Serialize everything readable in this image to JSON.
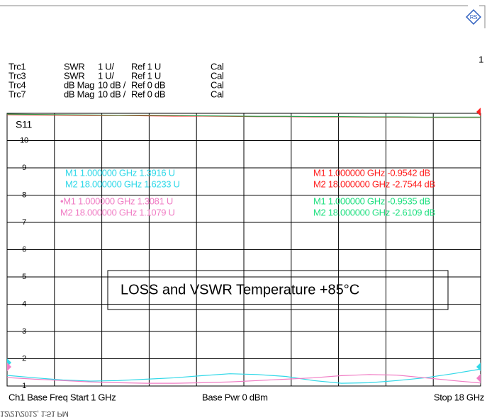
{
  "chart_data": {
    "type": "line",
    "channel": "1",
    "trace_label": "S11",
    "header_rows": [
      [
        "SWR",
        "1 U/",
        "Ref 1 U",
        "Cal"
      ],
      [
        "SWR",
        "1 U/",
        "Ref 1 U",
        "Cal"
      ],
      [
        "dB Mag",
        "10 dB /",
        "Ref 0 dB",
        "Cal"
      ],
      [
        "dB Mag",
        "10 dB /",
        "Ref 0 dB",
        "Cal"
      ]
    ],
    "x": [
      1,
      2,
      3,
      4,
      5,
      6,
      7,
      8,
      9,
      10,
      11,
      12,
      13,
      14,
      15,
      16,
      17,
      18
    ],
    "xlim": [
      1,
      18
    ],
    "ylim": [
      1,
      11
    ],
    "yticks": [
      1,
      2,
      3,
      4,
      5,
      6,
      7,
      8,
      9,
      10
    ],
    "grid": true,
    "series": [
      {
        "name": "Trc1",
        "color": "#30d8e8",
        "values": [
          1.39,
          1.3,
          1.22,
          1.18,
          1.2,
          1.25,
          1.3,
          1.38,
          1.45,
          1.42,
          1.35,
          1.2,
          1.1,
          1.12,
          1.2,
          1.3,
          1.45,
          1.62
        ]
      },
      {
        "name": "Trc3",
        "color": "#f07cc4",
        "values": [
          1.31,
          1.25,
          1.2,
          1.15,
          1.12,
          1.1,
          1.1,
          1.12,
          1.15,
          1.2,
          1.25,
          1.3,
          1.38,
          1.42,
          1.4,
          1.3,
          1.2,
          1.11
        ]
      },
      {
        "name": "Trc4",
        "color": "#ff2020",
        "values": [
          10.95,
          10.94,
          10.93,
          10.92,
          10.92,
          10.91,
          10.9,
          10.9,
          10.89,
          10.88,
          10.88,
          10.87,
          10.87,
          10.86,
          10.86,
          10.85,
          10.85,
          10.85
        ]
      },
      {
        "name": "Trc7",
        "color": "#30a050",
        "values": [
          10.97,
          10.96,
          10.95,
          10.94,
          10.93,
          10.93,
          10.92,
          10.91,
          10.9,
          10.89,
          10.89,
          10.88,
          10.88,
          10.87,
          10.87,
          10.86,
          10.86,
          10.86
        ]
      }
    ],
    "markers": [
      {
        "color": "#30d8e8",
        "lines": [
          "M1 1.000000 GHz 1.3916 U",
          "M2 18.000000 GHz 1.6233 U"
        ]
      },
      {
        "color": "#f07cc4",
        "lines": [
          "•M1 1.000000 GHz 1.3081 U",
          "M2 18.000000 GHz 1.1079 U"
        ]
      },
      {
        "color": "#ff2020",
        "lines": [
          "M1 1.000000 GHz -0.9542 dB",
          "M2 18.000000 GHz -2.7544 dB"
        ]
      },
      {
        "color": "#20e080",
        "lines": [
          "M1 1.000000 GHz -0.9535 dB",
          "M2 18.000000 GHz -2.6109 dB"
        ]
      }
    ],
    "annotation": "LOSS and VSWR Temperature +85°C",
    "footer": {
      "start": "Ch1 Base Freq Start 1 GHz",
      "power": "Base Pwr 0 dBm",
      "stop": "Stop 18 GHz"
    },
    "timestamp": "12/21/2012, 1:51 PM"
  }
}
